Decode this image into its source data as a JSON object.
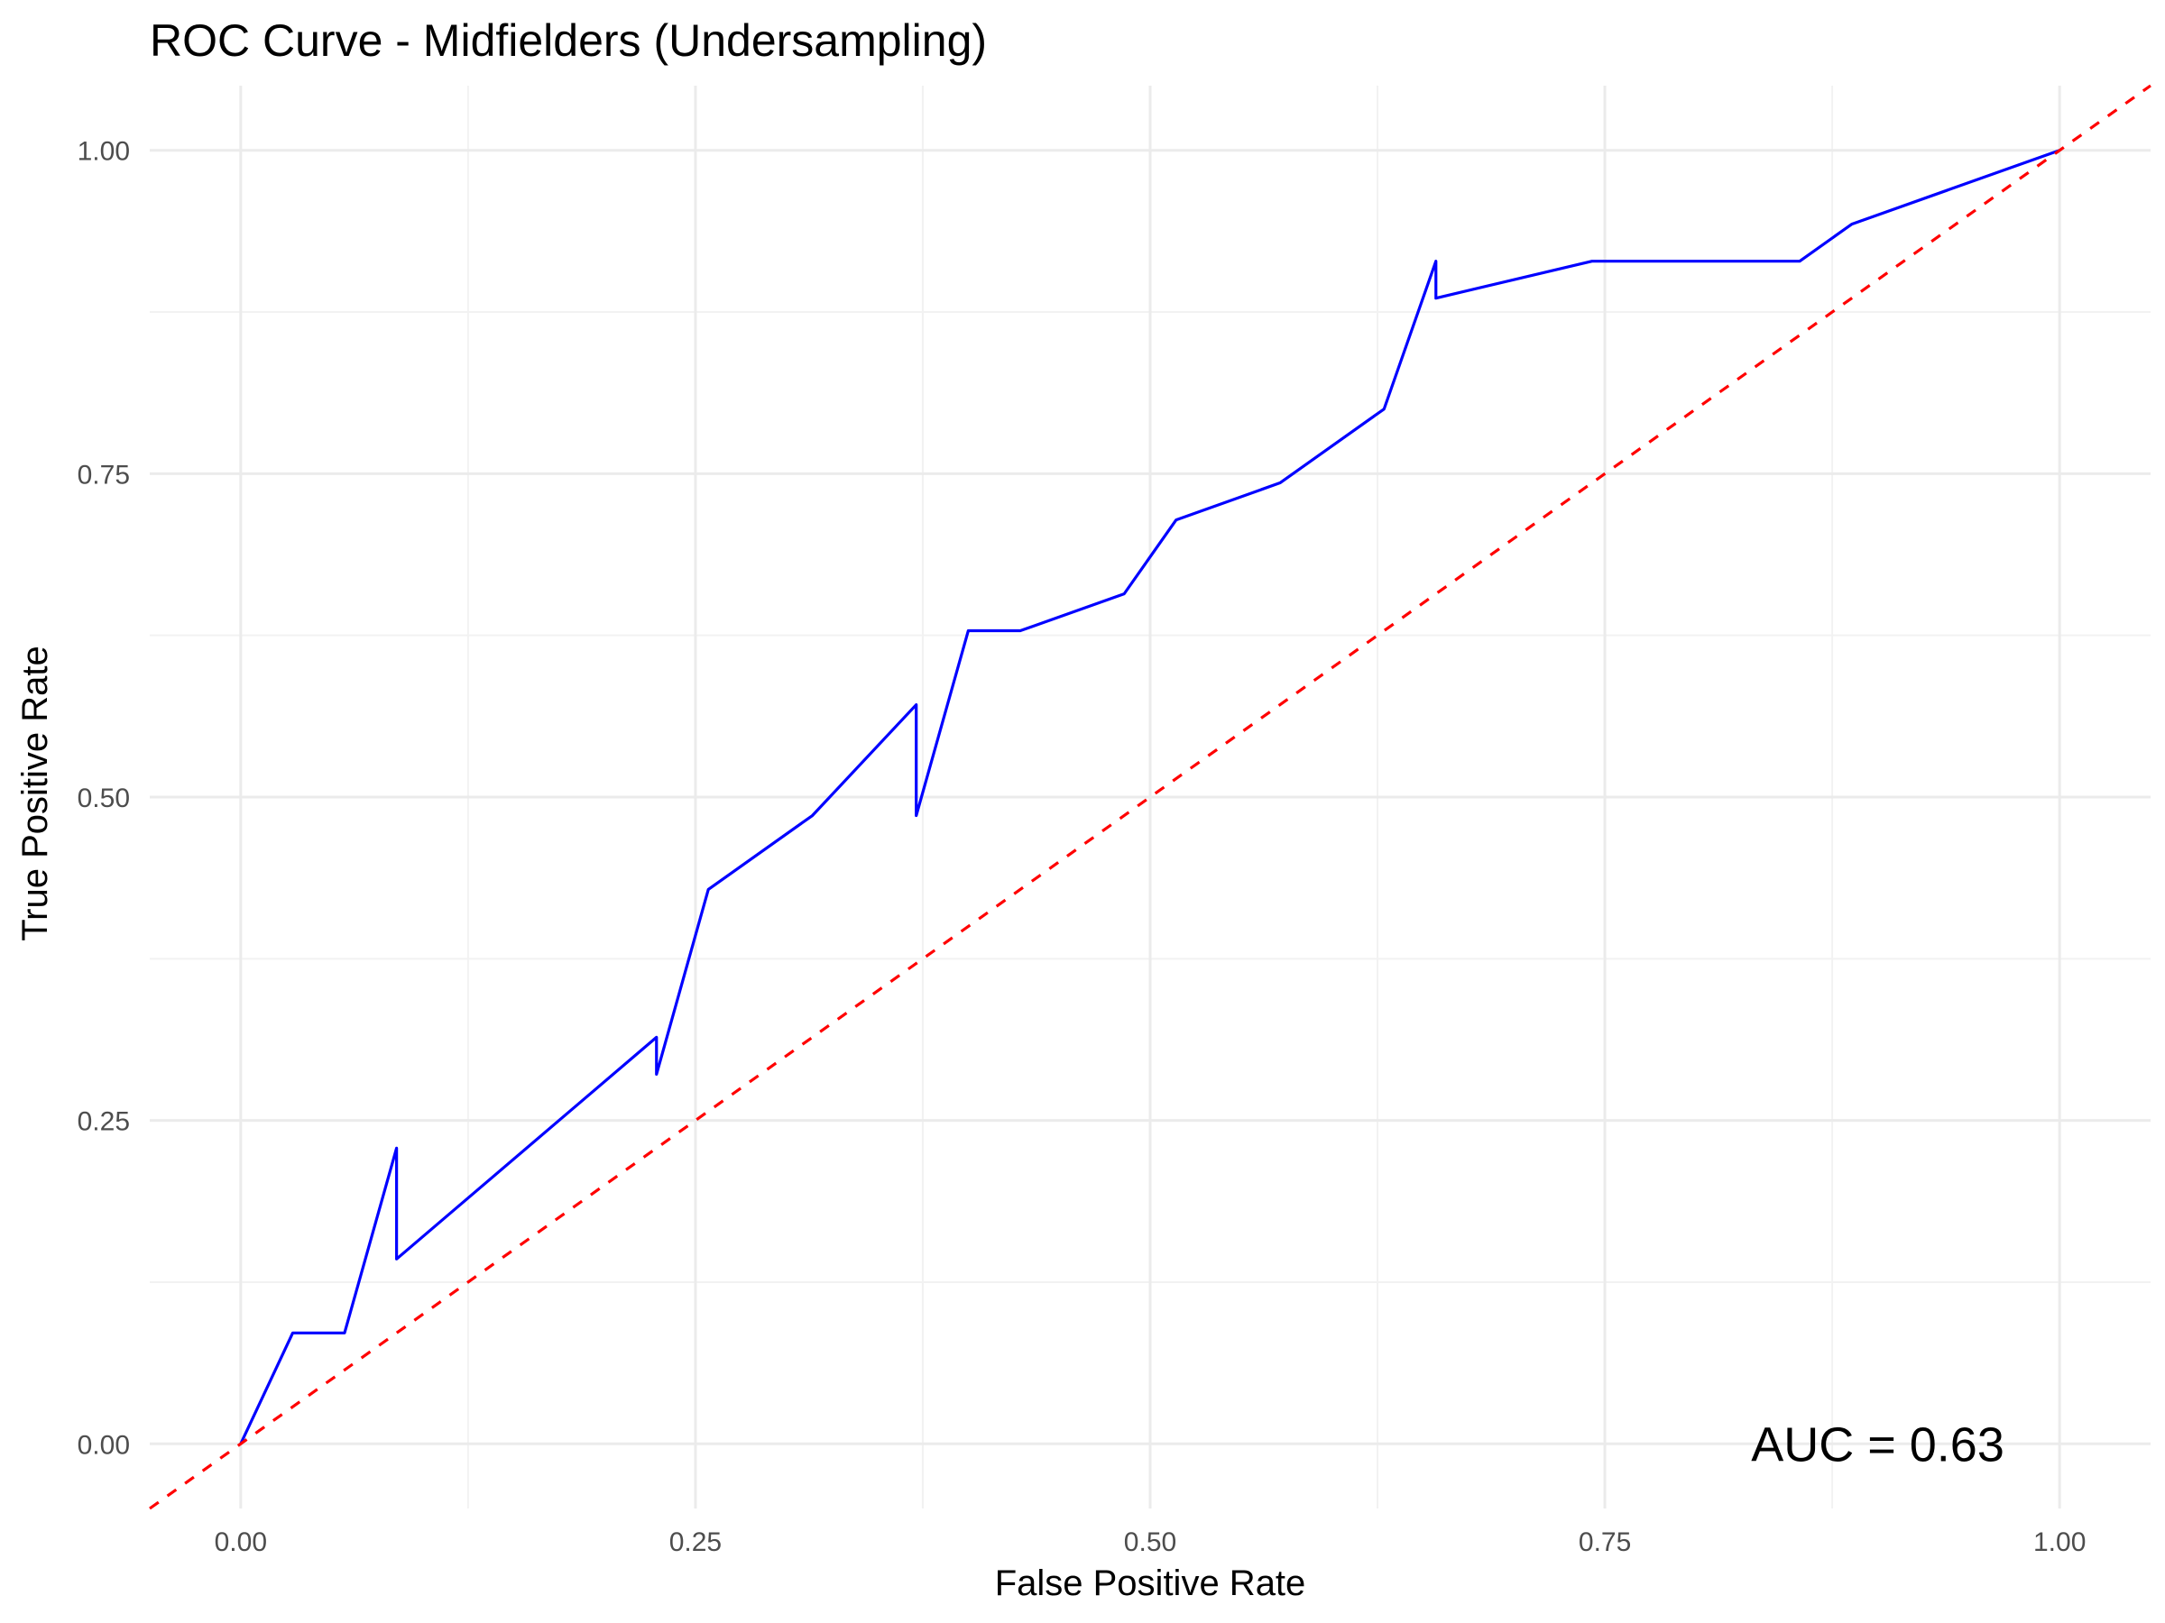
{
  "chart_data": {
    "type": "line",
    "title": "ROC Curve - Midfielders (Undersampling)",
    "xlabel": "False Positive Rate",
    "ylabel": "True Positive Rate",
    "xlim": [
      -0.05,
      1.05
    ],
    "ylim": [
      -0.05,
      1.05
    ],
    "x_ticks": [
      "0.00",
      "0.25",
      "0.50",
      "0.75",
      "1.00"
    ],
    "y_ticks": [
      "0.00",
      "0.25",
      "0.50",
      "0.75",
      "1.00"
    ],
    "grid": true,
    "series": [
      {
        "color": "#0000ff",
        "style": "solid",
        "x": [
          0.0,
          0.0286,
          0.0571,
          0.0857,
          0.0857,
          0.2286,
          0.2286,
          0.2571,
          0.3143,
          0.3714,
          0.3714,
          0.4,
          0.4286,
          0.4857,
          0.5143,
          0.5714,
          0.6286,
          0.6571,
          0.6571,
          0.7429,
          0.8571,
          0.8857,
          1.0
        ],
        "y": [
          0.0,
          0.0857,
          0.0857,
          0.2286,
          0.1429,
          0.3143,
          0.2857,
          0.4286,
          0.4857,
          0.5714,
          0.4857,
          0.6286,
          0.6286,
          0.6571,
          0.7143,
          0.7429,
          0.8,
          0.9143,
          0.8857,
          0.9143,
          0.9143,
          0.9429,
          1.0
        ]
      },
      {
        "color": "#ff0000",
        "style": "dashed",
        "x": [
          -0.05,
          1.05
        ],
        "y": [
          -0.05,
          1.05
        ]
      }
    ],
    "annotations": [
      {
        "text": "AUC = 0.63",
        "x": 0.9,
        "y": 0.0
      }
    ]
  }
}
